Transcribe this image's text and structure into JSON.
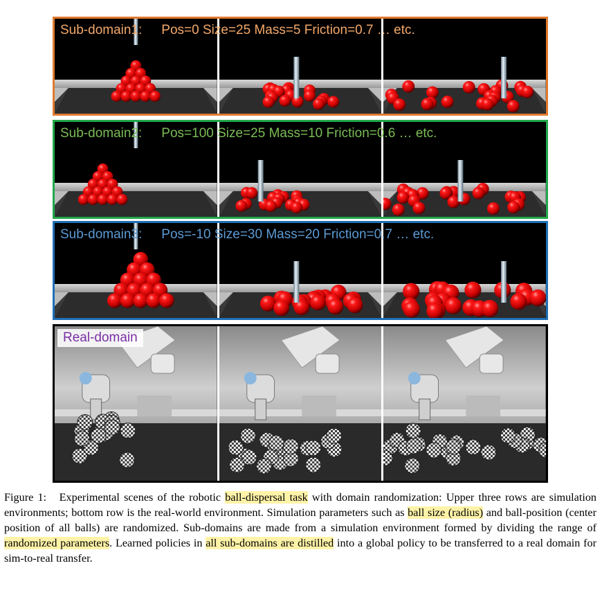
{
  "figure": {
    "rows": [
      {
        "label": "Sub-domain1:",
        "params": "Pos=0 Size=25 Mass=5 Friction=0.7 … etc.",
        "color": "#f3a86a",
        "border": "#e07a2e"
      },
      {
        "label": "Sub-domain2:",
        "params": "Pos=100 Size=25 Mass=10 Friction=0.6 … etc.",
        "color": "#7bbd55",
        "border": "#22a84a"
      },
      {
        "label": "Sub-domain3:",
        "params": "Pos=-10 Size=30 Mass=20 Friction=0.7 … etc.",
        "color": "#5b9bd5",
        "border": "#1f6fb5"
      },
      {
        "label": "Real-domain",
        "color": "#7a2fa6",
        "border": "#000000"
      }
    ]
  },
  "caption": {
    "prefix": "Figure 1:",
    "p1": "Experimental scenes of the robotic ",
    "h1": "ball-dispersal task",
    "p2": " with domain randomization: Upper three rows are simulation environments; bottom row is the real-world environment. Simulation parameters such as ",
    "h2": "ball size (radius)",
    "p3": " and ball-position (center position of all balls) are randomized. Sub-domains are made from a simulation environment formed by dividing the range of ",
    "h3": "randomized parameters",
    "p4": ". Learned policies in ",
    "h4": "all sub-domains are distilled",
    "p5": " into a global policy to be transferred to a real domain for sim-to-real transfer."
  }
}
